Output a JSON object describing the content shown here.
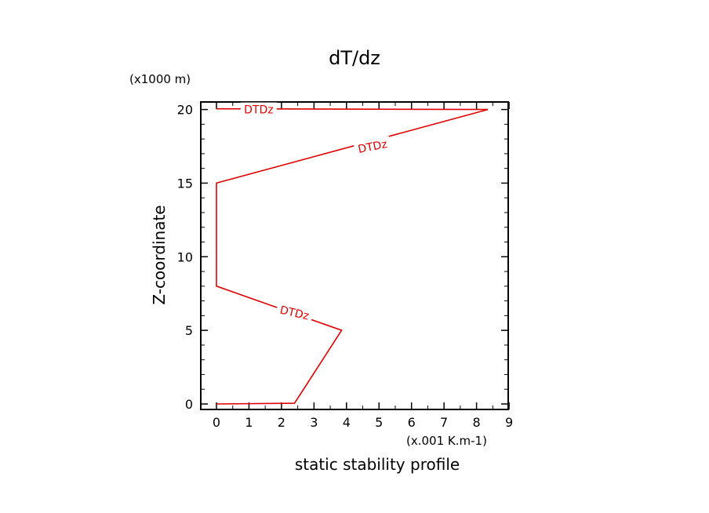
{
  "chart_data": {
    "type": "line",
    "title": "dT/dz",
    "xlabel": "static stability profile",
    "ylabel": "Z-coordinate",
    "x_unit_label": "(x.001 K.m-1)",
    "y_unit_label": "(x1000 m)",
    "xlim": [
      -0.5,
      9
    ],
    "ylim": [
      -0.4,
      20.5
    ],
    "x_ticks": [
      0,
      1,
      2,
      3,
      4,
      5,
      6,
      7,
      8,
      9
    ],
    "y_ticks": [
      0,
      5,
      10,
      15,
      20
    ],
    "series": [
      {
        "name": "DTDz",
        "color": "#e00000",
        "x": [
          0,
          2.4,
          3.85,
          0,
          0,
          0,
          8.35,
          0
        ],
        "y": [
          0,
          0.05,
          5,
          8,
          10,
          15,
          20,
          20.05
        ]
      }
    ],
    "line_labels": [
      {
        "text": "DTDz",
        "x": 1.3,
        "y": 20,
        "angle": 0
      },
      {
        "text": "DTDz",
        "x": 4.8,
        "y": 17.5,
        "angle": -11
      },
      {
        "text": "DTDz",
        "x": 2.4,
        "y": 6.2,
        "angle": 13
      }
    ]
  }
}
